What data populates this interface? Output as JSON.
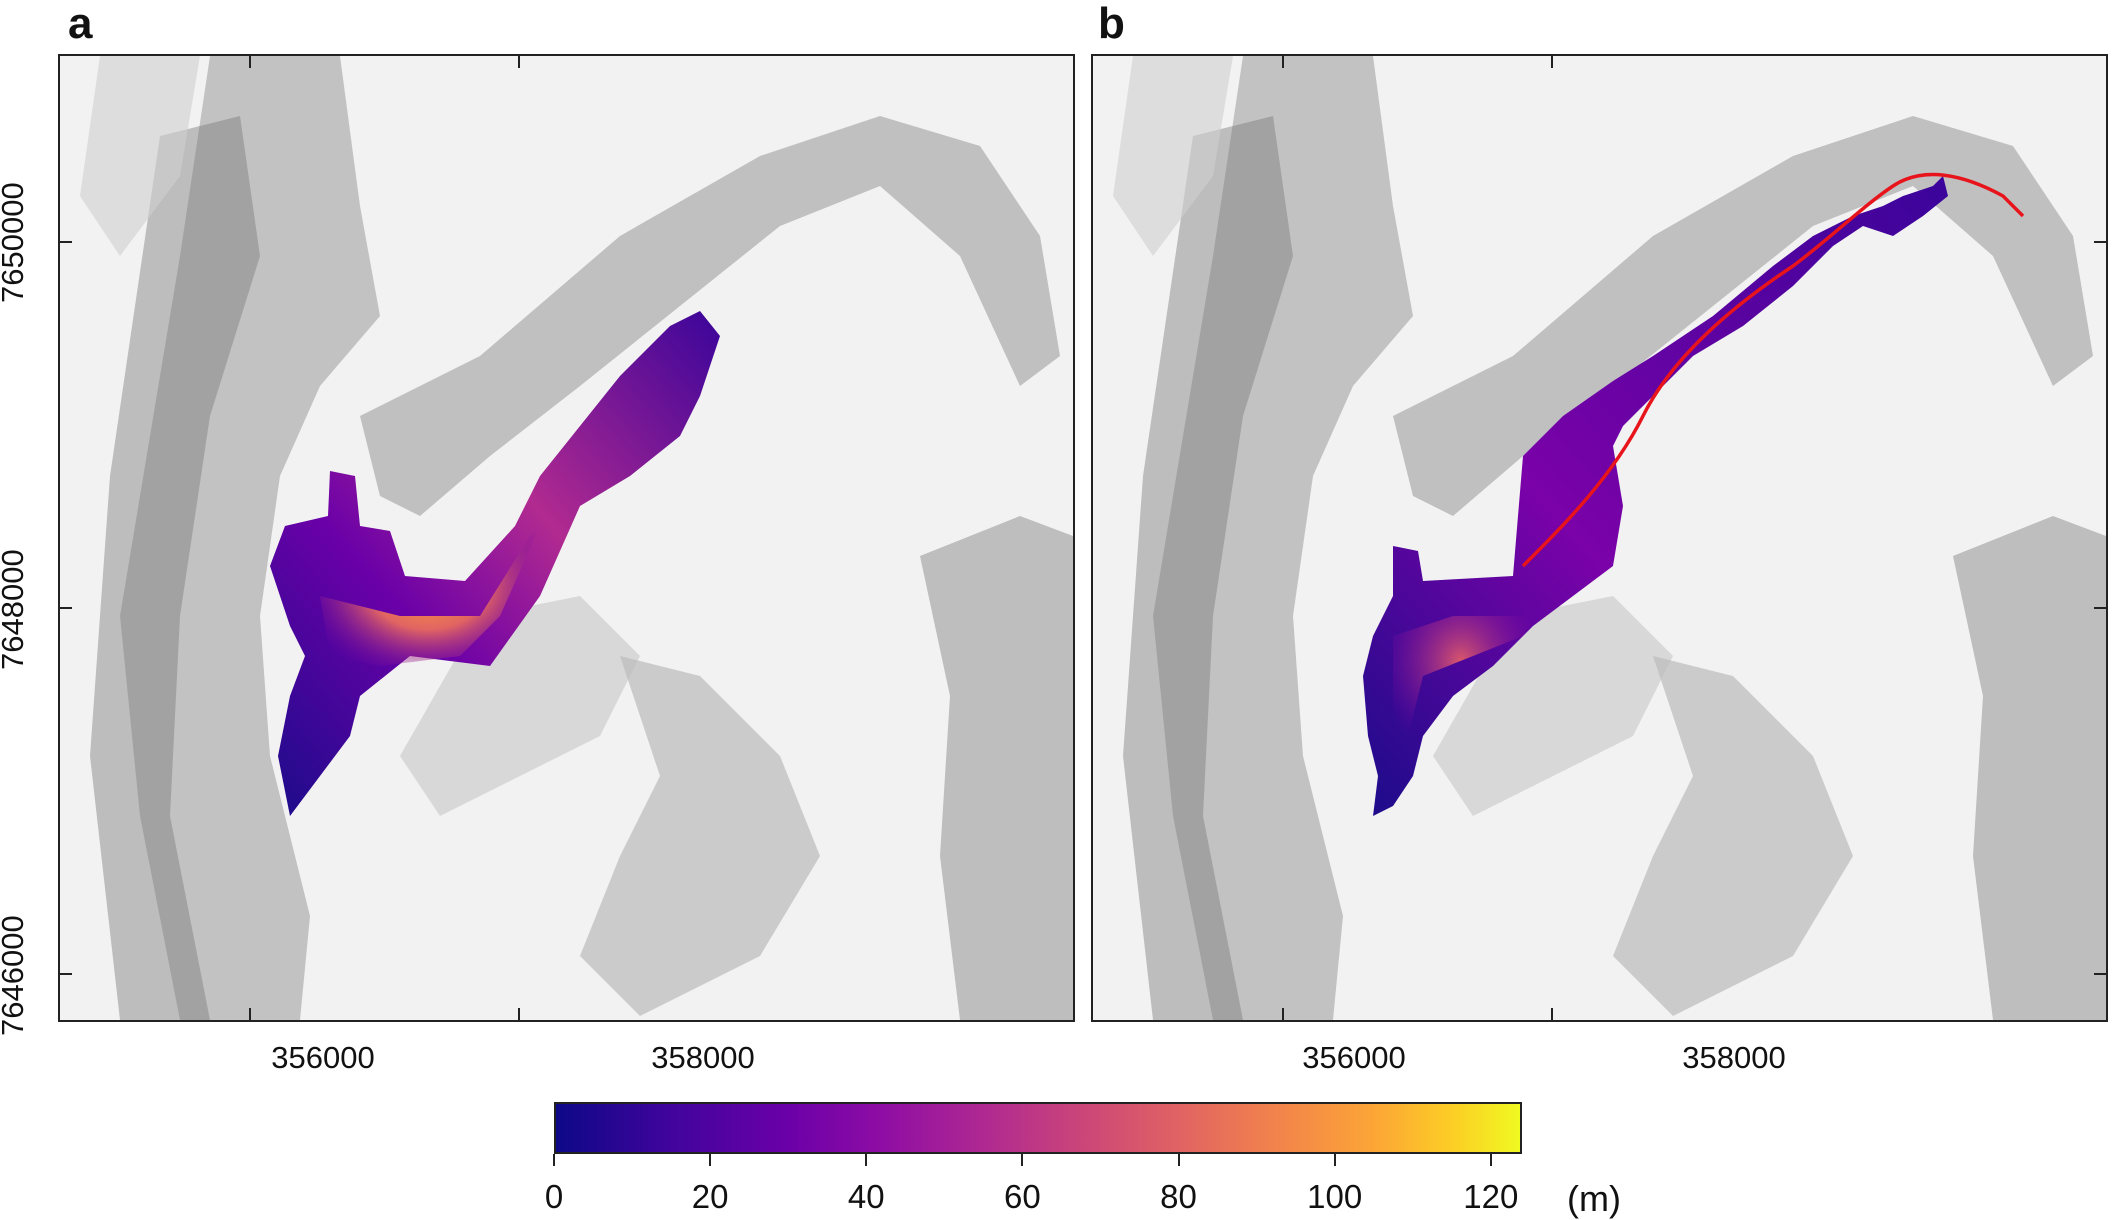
{
  "panels": [
    {
      "letter": "a"
    },
    {
      "letter": "b"
    }
  ],
  "axes": {
    "x_ticks": [
      "356000",
      "358000"
    ],
    "y_ticks": [
      "7650000",
      "7648000",
      "7646000"
    ]
  },
  "colorbar": {
    "ticks": [
      "0",
      "20",
      "40",
      "60",
      "80",
      "100",
      "120"
    ],
    "unit": "(m)",
    "min": 0,
    "max": 124,
    "colormap": "plasma"
  },
  "colors": {
    "runout_line": "#e8141c",
    "frame": "#222222"
  }
}
